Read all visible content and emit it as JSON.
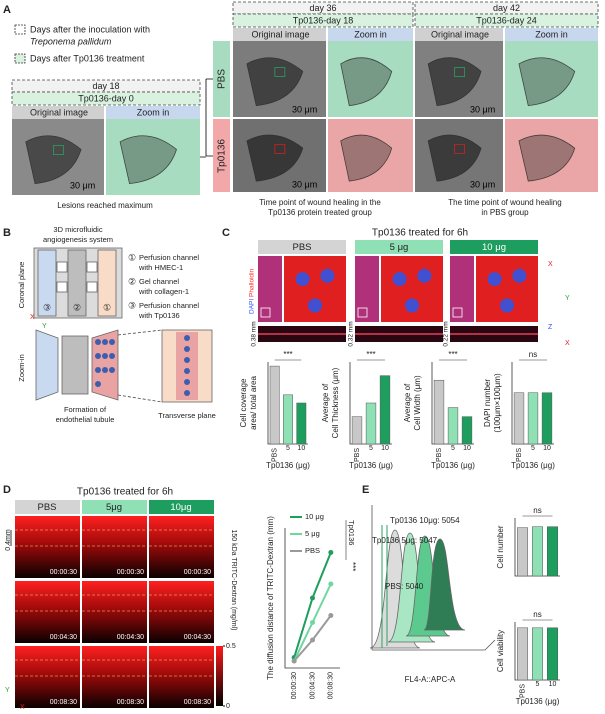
{
  "panel_a": {
    "label": "A",
    "legend": [
      "Days after the inoculation with",
      "Treponema pallidum",
      "Days after Tp0136 treatment"
    ],
    "left": {
      "day": "day 18",
      "treatment": "Tp0136-day 0",
      "original": "Original image",
      "zoom": "Zoom in",
      "scale": "30 μm",
      "caption": "Lesions reached maximum"
    },
    "rows": [
      "PBS",
      "Tp0136"
    ],
    "middle": {
      "day": "day 36",
      "treatment": "Tp0136-day 18",
      "original": "Original image",
      "zoom": "Zoom in",
      "scale": [
        "30 μm",
        "30 μm"
      ],
      "caption": [
        "Time point of wound healing in the",
        "Tp0136 protein treated group"
      ]
    },
    "right": {
      "day": "day 42",
      "treatment": "Tp0136-day 24",
      "original": "Original image",
      "zoom": "Zoom in",
      "scale": [
        "30 μm",
        "30 μm"
      ],
      "caption": [
        "The time point of wound healing",
        "in PBS group"
      ]
    }
  },
  "panel_b": {
    "label": "B",
    "title": [
      "3D microfluidic",
      "angiogenesis system"
    ],
    "items": [
      [
        "①",
        "Perfusion channel",
        "with HMEC-1"
      ],
      [
        "②",
        "Gel channel",
        "with collagen-1"
      ],
      [
        "③",
        "Perfusion channel",
        "with Tp0136"
      ]
    ],
    "chip_numbers": [
      "③",
      "②",
      "①"
    ],
    "coronal": "Coronal plane",
    "axes": [
      "X",
      "Y"
    ],
    "zoom": "Zoom-in",
    "caption": [
      "Formation of",
      "endothelial tubule"
    ],
    "transverse": "Transverse plane"
  },
  "panel_c": {
    "label": "C",
    "title": "Tp0136 treated for 6h",
    "groups": [
      "PBS",
      "5 μg",
      "10 μg"
    ],
    "stains": [
      "DAPI",
      "Phalloidin"
    ],
    "depths": [
      "0.38 mm",
      "0.32 mm",
      "0.22 mm"
    ],
    "axes": [
      "X",
      "Y",
      "Z",
      "X"
    ]
  },
  "panel_d": {
    "label": "D",
    "title": "Tp0136 treated for 6h",
    "groups": [
      "PBS",
      "5μg",
      "10μg"
    ],
    "times": [
      "00:00:30",
      "00:04:30",
      "00:08:30"
    ],
    "scale": "0.4mm",
    "axes": [
      "Y",
      "X"
    ],
    "colorbar": {
      "label": "150 kDa TRITC-Dextran (mg/ml)",
      "lim": [
        0,
        0.5
      ],
      "ticks": [
        0.5,
        0
      ]
    }
  },
  "panel_e": {
    "label": "E",
    "peaks": [
      "Tp0136 10μg: 5054",
      "Tp0136 5μg: 5047",
      "PBS: 5040"
    ],
    "xlabel": "FL4-A::APC-A"
  },
  "chart_data": [
    {
      "type": "bar",
      "ylabel": [
        "Cell coverage",
        "area/ total area"
      ],
      "categories": [
        "PBS",
        "5",
        "10"
      ],
      "xlabel": "Tp0136 (μg)",
      "values": [
        95,
        60,
        50
      ],
      "colors": [
        "#c8c8c8",
        "#8fe0b5",
        "#1e9e5e"
      ],
      "ylim": [
        0,
        100
      ],
      "annotation": "***"
    },
    {
      "type": "bar",
      "ylabel": [
        "Average of",
        "Cell Thickness (μm)"
      ],
      "categories": [
        "PBS",
        "5",
        "10"
      ],
      "xlabel": "Tp0136 (μg)",
      "values": [
        0.1,
        0.15,
        0.25
      ],
      "colors": [
        "#c8c8c8",
        "#8fe0b5",
        "#1e9e5e"
      ],
      "ylim": [
        0,
        0.3
      ],
      "annotation": "***"
    },
    {
      "type": "bar",
      "ylabel": [
        "Average of",
        "Cell Width (μm)"
      ],
      "categories": [
        "PBS",
        "5",
        "10"
      ],
      "xlabel": "Tp0136 (μg)",
      "values": [
        35,
        20,
        15
      ],
      "colors": [
        "#c8c8c8",
        "#8fe0b5",
        "#1e9e5e"
      ],
      "ylim": [
        0,
        45
      ],
      "annotation": "***"
    },
    {
      "type": "bar",
      "ylabel": [
        "DAPI number",
        "(100μm×100μm)"
      ],
      "categories": [
        "PBS",
        "5",
        "10"
      ],
      "xlabel": "Tp0136 (μg)",
      "values": [
        5,
        5,
        5
      ],
      "colors": [
        "#c8c8c8",
        "#8fe0b5",
        "#1e9e5e"
      ],
      "ylim": [
        0,
        8
      ],
      "annotation": "ns"
    },
    {
      "type": "line",
      "ylabel": [
        "The diffusion distance of TRITC-Dextran (mm)"
      ],
      "categories": [
        "00:00:30",
        "00:04:30",
        "00:08:30"
      ],
      "series": [
        {
          "name": "10 μg",
          "color": "#1e9e5e",
          "values": [
            0.03,
            0.2,
            0.33
          ]
        },
        {
          "name": "5 μg",
          "color": "#6fd6a0",
          "values": [
            0.02,
            0.13,
            0.24
          ]
        },
        {
          "name": "PBS",
          "color": "#9a9a9a",
          "values": [
            0.02,
            0.08,
            0.15
          ]
        }
      ],
      "ylim": [
        0,
        0.4
      ],
      "annotation": "***",
      "group_label": "Tp0136"
    },
    {
      "type": "bar",
      "ylabel": [
        "Cell number"
      ],
      "categories": [
        null,
        null,
        null
      ],
      "values": [
        5000,
        5100,
        5100
      ],
      "colors": [
        "#c8c8c8",
        "#8fe0b5",
        "#1e9e5e"
      ],
      "ylim": [
        0,
        6000
      ],
      "annotation": "ns"
    },
    {
      "type": "bar",
      "ylabel": [
        "Cell viability"
      ],
      "categories": [
        "PBS",
        "5",
        "10"
      ],
      "xlabel": "Tp0136 (μg)",
      "values": [
        90,
        90,
        90
      ],
      "colors": [
        "#c8c8c8",
        "#8fe0b5",
        "#1e9e5e"
      ],
      "ylim": [
        0,
        100
      ],
      "annotation": "ns"
    }
  ]
}
